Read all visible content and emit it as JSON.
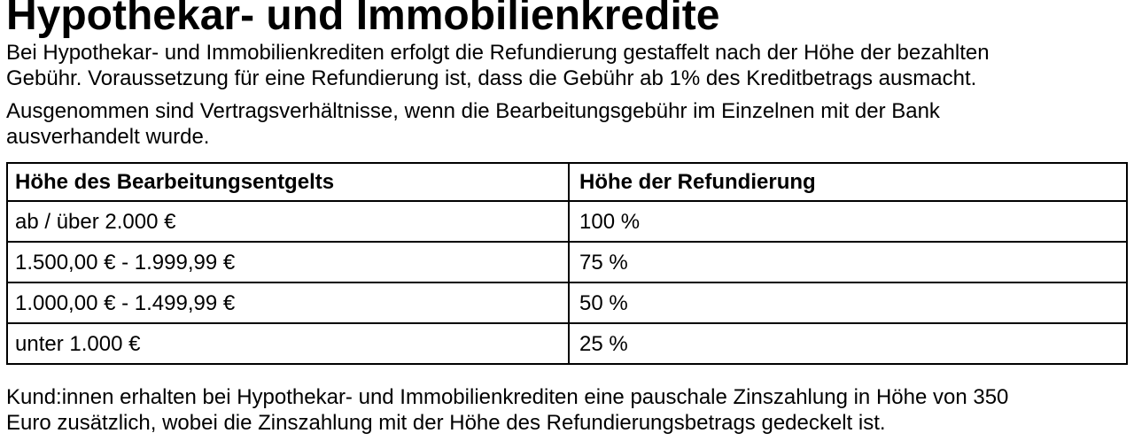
{
  "page": {
    "background": "#ffffff",
    "text_color": "#000000",
    "title": "Hypothekar- und Immobilienkredite",
    "paragraph1": {
      "line1": "Bei Hypothekar- und Immobilienkrediten erfolgt die Refundierung gestaffelt nach der Höhe der bezahlten",
      "line2": "Gebühr. Voraussetzung für eine Refundierung ist, dass die Gebühr ab 1% des Kreditbetrags ausmacht."
    },
    "paragraph2": {
      "line1": "Ausgenommen sind Vertragsverhältnisse, wenn die Bearbeitungsgebühr im Einzelnen mit der Bank",
      "line2": "ausverhandelt wurde."
    },
    "table": {
      "border_color": "#000000",
      "headers": [
        "Höhe des Bearbeitungsentgelts",
        "Höhe der Refundierung"
      ],
      "rows": [
        [
          "ab / über 2.000 €",
          "100 %"
        ],
        [
          "1.500,00 € - 1.999,99 €",
          "75 %"
        ],
        [
          "1.000,00 € - 1.499,99 €",
          "50 %"
        ],
        [
          "unter 1.000 €",
          "25 %"
        ]
      ]
    },
    "paragraph3": {
      "line1": "Kund:innen erhalten bei Hypothekar- und Immobilienkrediten eine pauschale Zinszahlung in Höhe von 350",
      "line2": "Euro zusätzlich, wobei die Zinszahlung mit der Höhe des Refundierungsbetrags gedeckelt ist."
    }
  }
}
